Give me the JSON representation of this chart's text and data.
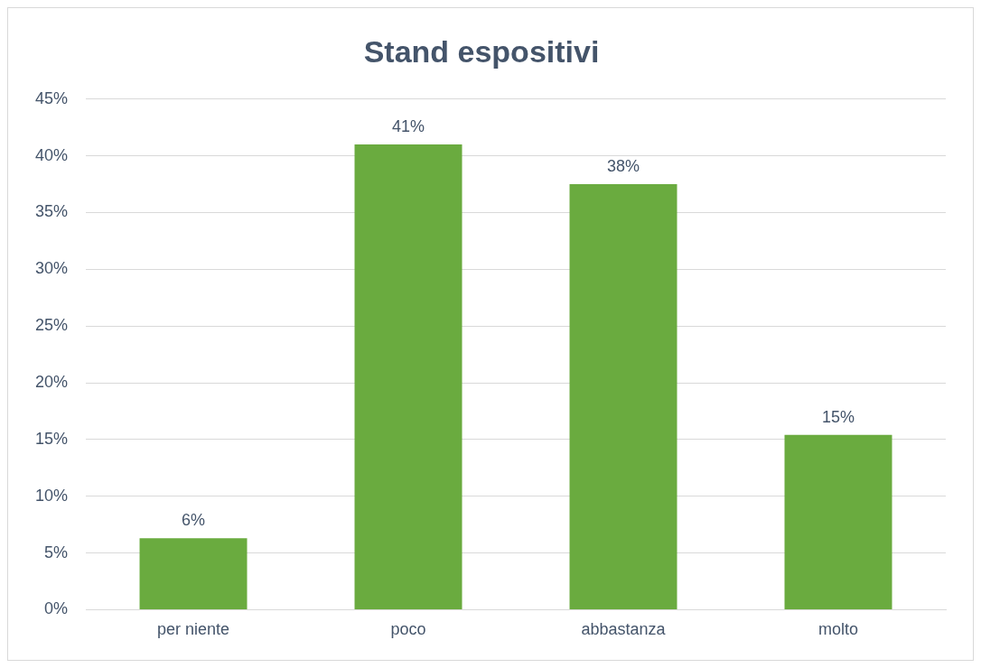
{
  "chart_data": {
    "type": "bar",
    "title": "Stand espositivi",
    "categories": [
      "per niente",
      "poco",
      "abbastanza",
      "molto"
    ],
    "values": [
      6.3,
      41,
      37.5,
      15.4
    ],
    "value_labels": [
      "6%",
      "41%",
      "38%",
      "15%"
    ],
    "color": "#6aab3f",
    "ylim": [
      0,
      45
    ],
    "yticks": [
      {
        "value": 0,
        "label": "0%"
      },
      {
        "value": 5,
        "label": "5%"
      },
      {
        "value": 10,
        "label": "10%"
      },
      {
        "value": 15,
        "label": "15%"
      },
      {
        "value": 20,
        "label": "20%"
      },
      {
        "value": 25,
        "label": "25%"
      },
      {
        "value": 30,
        "label": "30%"
      },
      {
        "value": 35,
        "label": "35%"
      },
      {
        "value": 40,
        "label": "40%"
      },
      {
        "value": 45,
        "label": "45%"
      }
    ],
    "grid": "y",
    "legend": false
  }
}
